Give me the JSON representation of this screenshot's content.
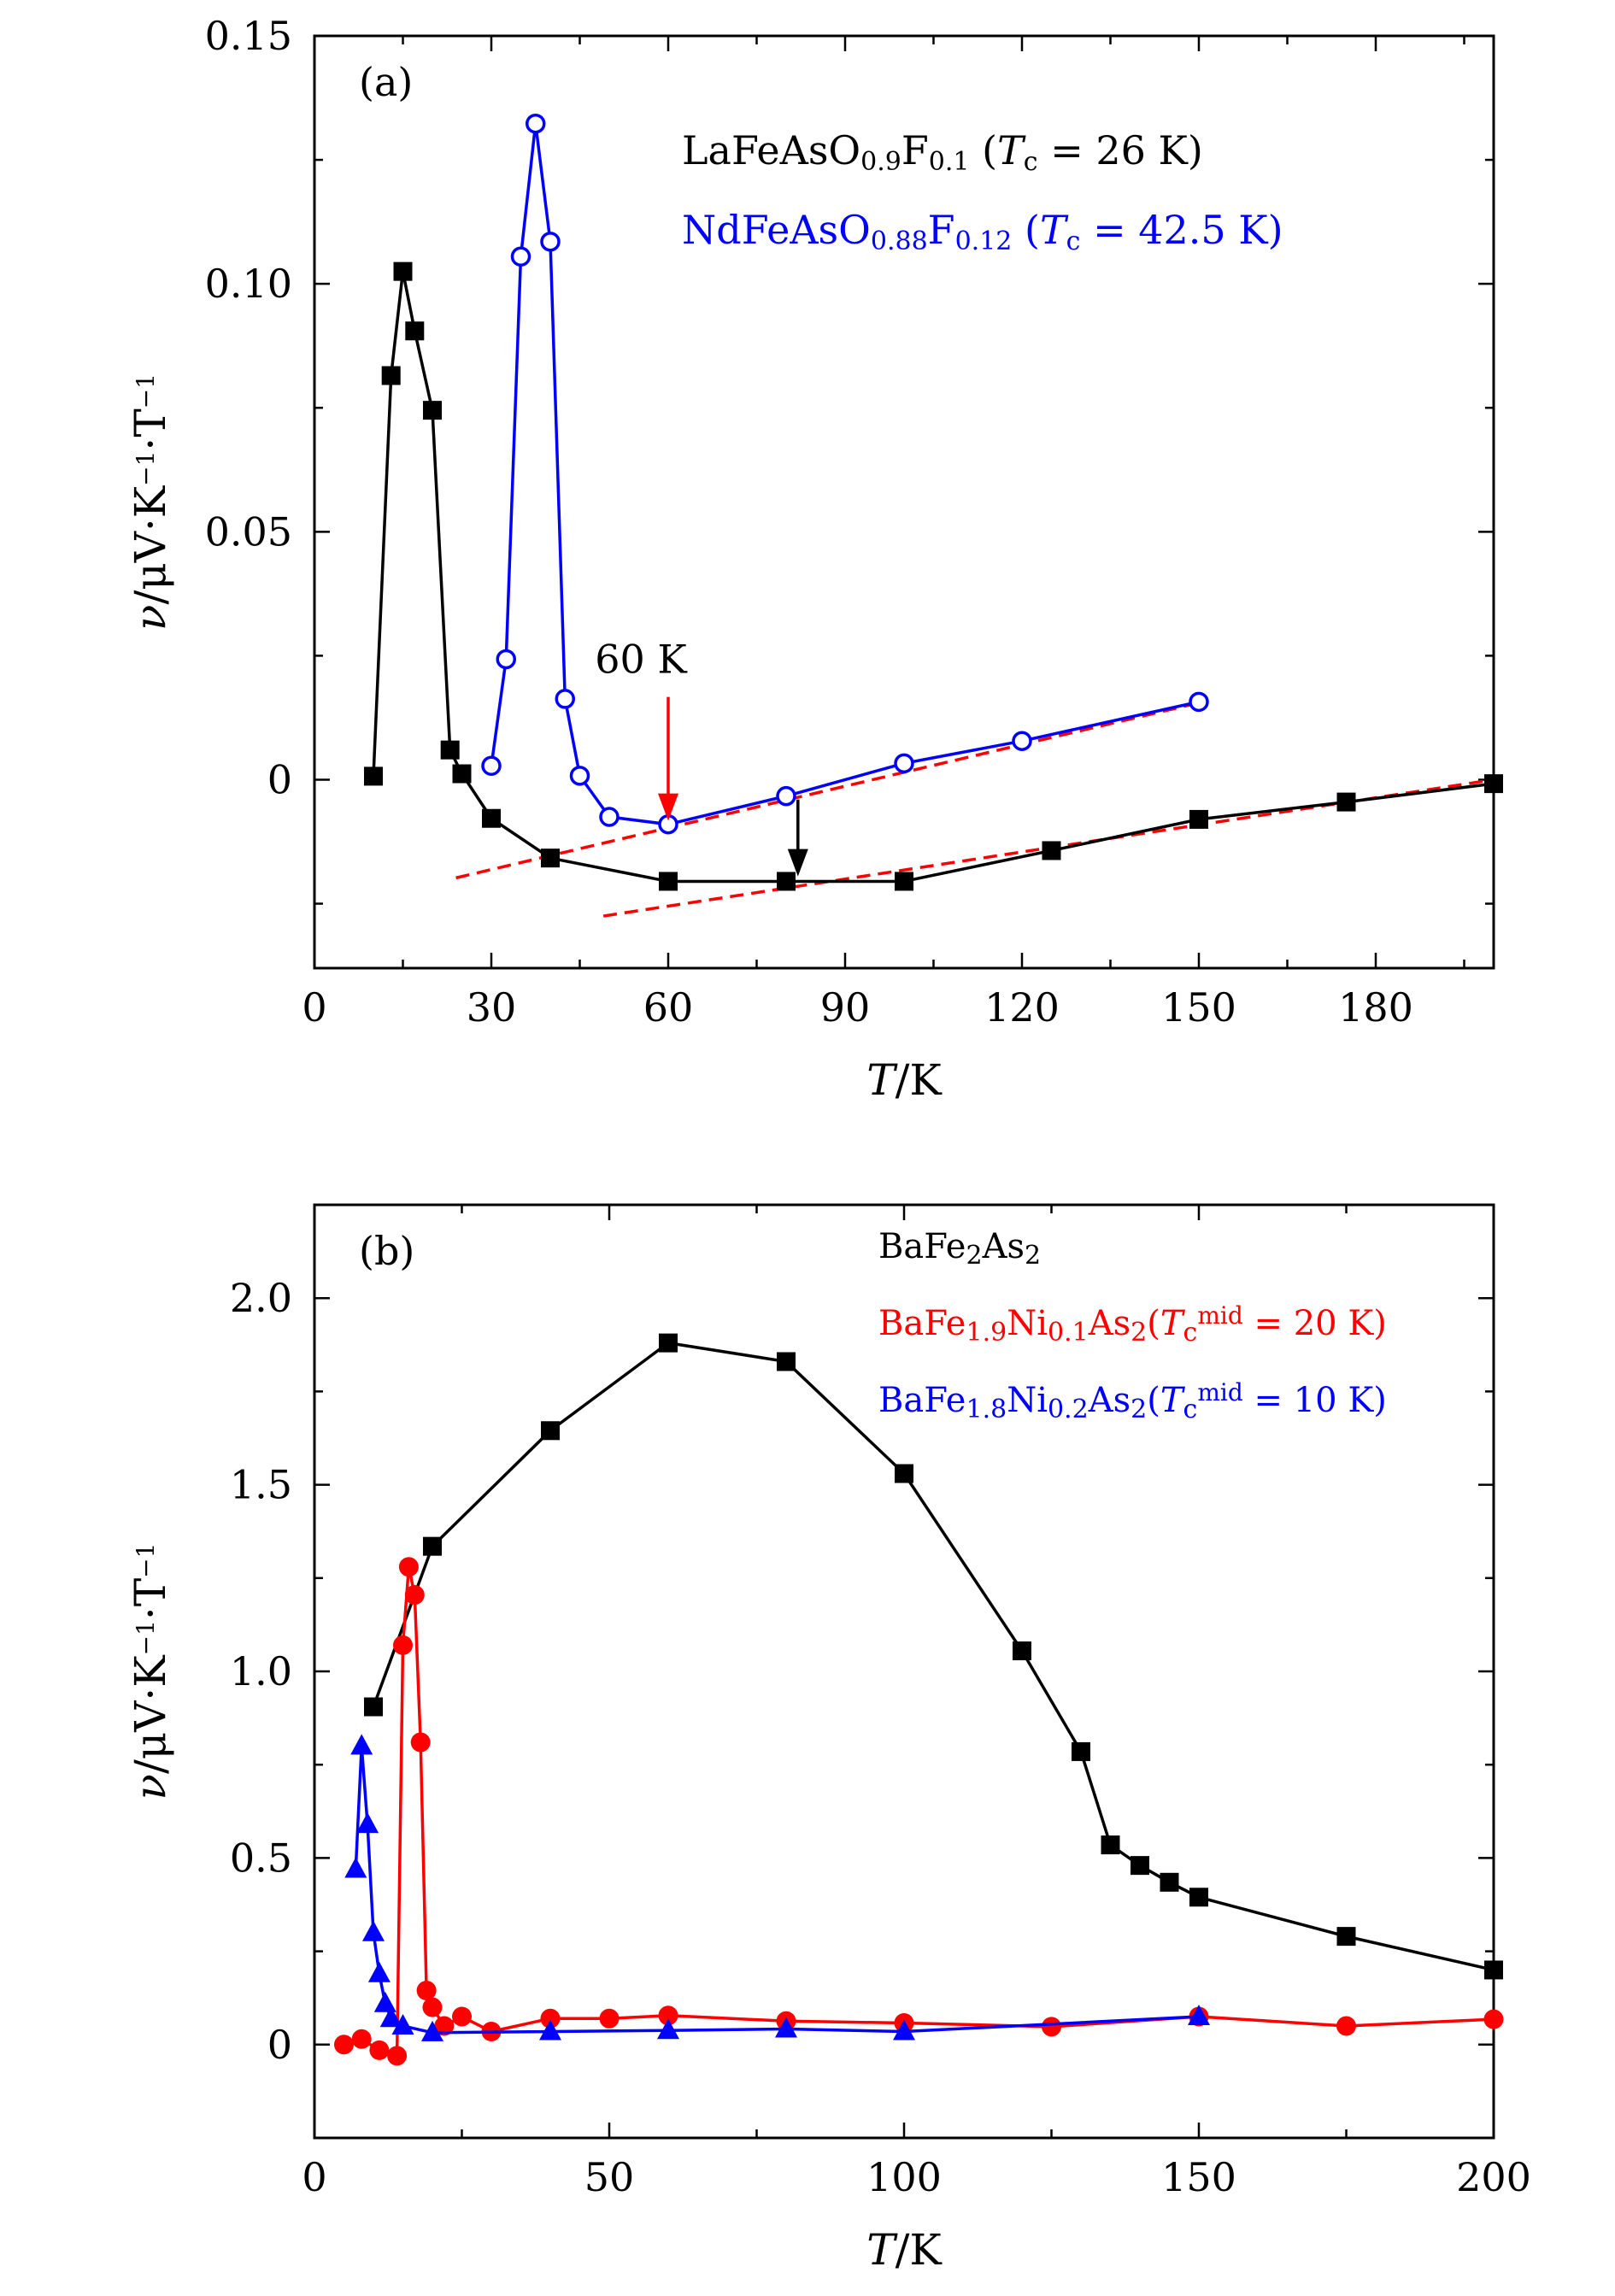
{
  "chart_data": [
    {
      "type": "line",
      "panel_label": "(a)",
      "xlabel": "T/K",
      "ylabel": "ν/μV·K−1·T−1",
      "xlim": [
        0,
        200
      ],
      "ylim": [
        -0.038,
        0.15
      ],
      "x_ticks": [
        0,
        30,
        60,
        90,
        120,
        150,
        180
      ],
      "x_tick_labels": [
        "0",
        "30",
        "60",
        "90",
        "120",
        "150",
        "180"
      ],
      "y_ticks": [
        0,
        0.05,
        0.1,
        0.15
      ],
      "y_tick_labels": [
        "0",
        "0.05",
        "0.10",
        "0.15"
      ],
      "legend_position": "top-right",
      "series": [
        {
          "name": "LaFeAsO0.9F0.1 (Tc = 26 K)",
          "color": "#000000",
          "marker": "filled-square",
          "x": [
            10,
            13,
            15,
            17,
            20,
            23,
            25,
            30,
            40,
            60,
            80,
            100,
            125,
            150,
            175,
            200
          ],
          "y": [
            0.0007,
            0.0815,
            0.1025,
            0.0905,
            0.0745,
            0.006,
            0.0012,
            -0.0078,
            -0.0158,
            -0.0205,
            -0.0205,
            -0.0205,
            -0.0143,
            -0.008,
            -0.0045,
            -0.0008
          ]
        },
        {
          "name": "NdFeAsO0.88F0.12 (Tc = 42.5 K)",
          "color": "#0000ff",
          "marker": "open-circle",
          "x": [
            30,
            32.5,
            35,
            37.5,
            40,
            42.5,
            45,
            50,
            60,
            80,
            100,
            120,
            150
          ],
          "y": [
            0.0028,
            0.0243,
            0.1055,
            0.1323,
            0.1085,
            0.0163,
            0.0008,
            -0.0075,
            -0.009,
            -0.0033,
            0.0033,
            0.0078,
            0.0157
          ]
        }
      ],
      "fit_lines": [
        {
          "color": "#ff0000",
          "style": "dashed",
          "x": [
            24,
            150
          ],
          "y": [
            -0.0198,
            0.0155
          ]
        },
        {
          "color": "#ff0000",
          "style": "dashed",
          "x": [
            49,
            200
          ],
          "y": [
            -0.0275,
            0.0
          ]
        }
      ],
      "annotations": [
        {
          "text": "60 K",
          "arrow_color": "#ff0000",
          "arrow_x": 60,
          "arrow_from_y": 0.0167,
          "arrow_to_y": -0.0083
        },
        {
          "text": "",
          "arrow_color": "#000000",
          "arrow_x": 82,
          "arrow_from_y": -0.004,
          "arrow_to_y": -0.0195
        }
      ]
    },
    {
      "type": "line",
      "panel_label": "(b)",
      "xlabel": "T/K",
      "ylabel": "ν/μV·K−1·T−1",
      "xlim": [
        0,
        200
      ],
      "ylim": [
        -0.25,
        2.25
      ],
      "x_ticks": [
        0,
        50,
        100,
        150,
        200
      ],
      "x_tick_labels": [
        "0",
        "50",
        "100",
        "150",
        "200"
      ],
      "y_ticks": [
        0,
        0.5,
        1.0,
        1.5,
        2.0
      ],
      "y_tick_labels": [
        "0",
        "0.5",
        "1.0",
        "1.5",
        "2.0"
      ],
      "legend_position": "top-right",
      "series": [
        {
          "name": "BaFe2As2",
          "color": "#000000",
          "marker": "filled-square",
          "x": [
            10,
            20,
            40,
            60,
            80,
            100,
            120,
            130,
            135,
            140,
            145,
            150,
            175,
            200
          ],
          "y": [
            0.905,
            1.335,
            1.645,
            1.88,
            1.83,
            1.53,
            1.055,
            0.785,
            0.535,
            0.48,
            0.435,
            0.395,
            0.29,
            0.2
          ]
        },
        {
          "name": "BaFe1.9Ni0.1As2(Tcmid = 20 K)",
          "color": "#ff0000",
          "marker": "filled-circle",
          "x": [
            5,
            8,
            11,
            14,
            15,
            16,
            17,
            18,
            19,
            20,
            22,
            25,
            30,
            40,
            50,
            60,
            80,
            100,
            125,
            150,
            175,
            200
          ],
          "y": [
            0.0,
            0.015,
            -0.015,
            -0.03,
            1.07,
            1.28,
            1.205,
            0.81,
            0.145,
            0.1,
            0.05,
            0.075,
            0.035,
            0.07,
            0.07,
            0.078,
            0.063,
            0.058,
            0.048,
            0.075,
            0.05,
            0.068
          ]
        },
        {
          "name": "BaFe1.8Ni0.2As2(Tcmid = 10 K)",
          "color": "#0000ff",
          "marker": "filled-triangle",
          "x": [
            7,
            8,
            9,
            10,
            11,
            12,
            13,
            15,
            20,
            40,
            60,
            80,
            100,
            150
          ],
          "y": [
            0.47,
            0.8,
            0.59,
            0.3,
            0.19,
            0.11,
            0.07,
            0.05,
            0.032,
            0.035,
            0.038,
            0.042,
            0.035,
            0.075
          ]
        }
      ]
    }
  ]
}
